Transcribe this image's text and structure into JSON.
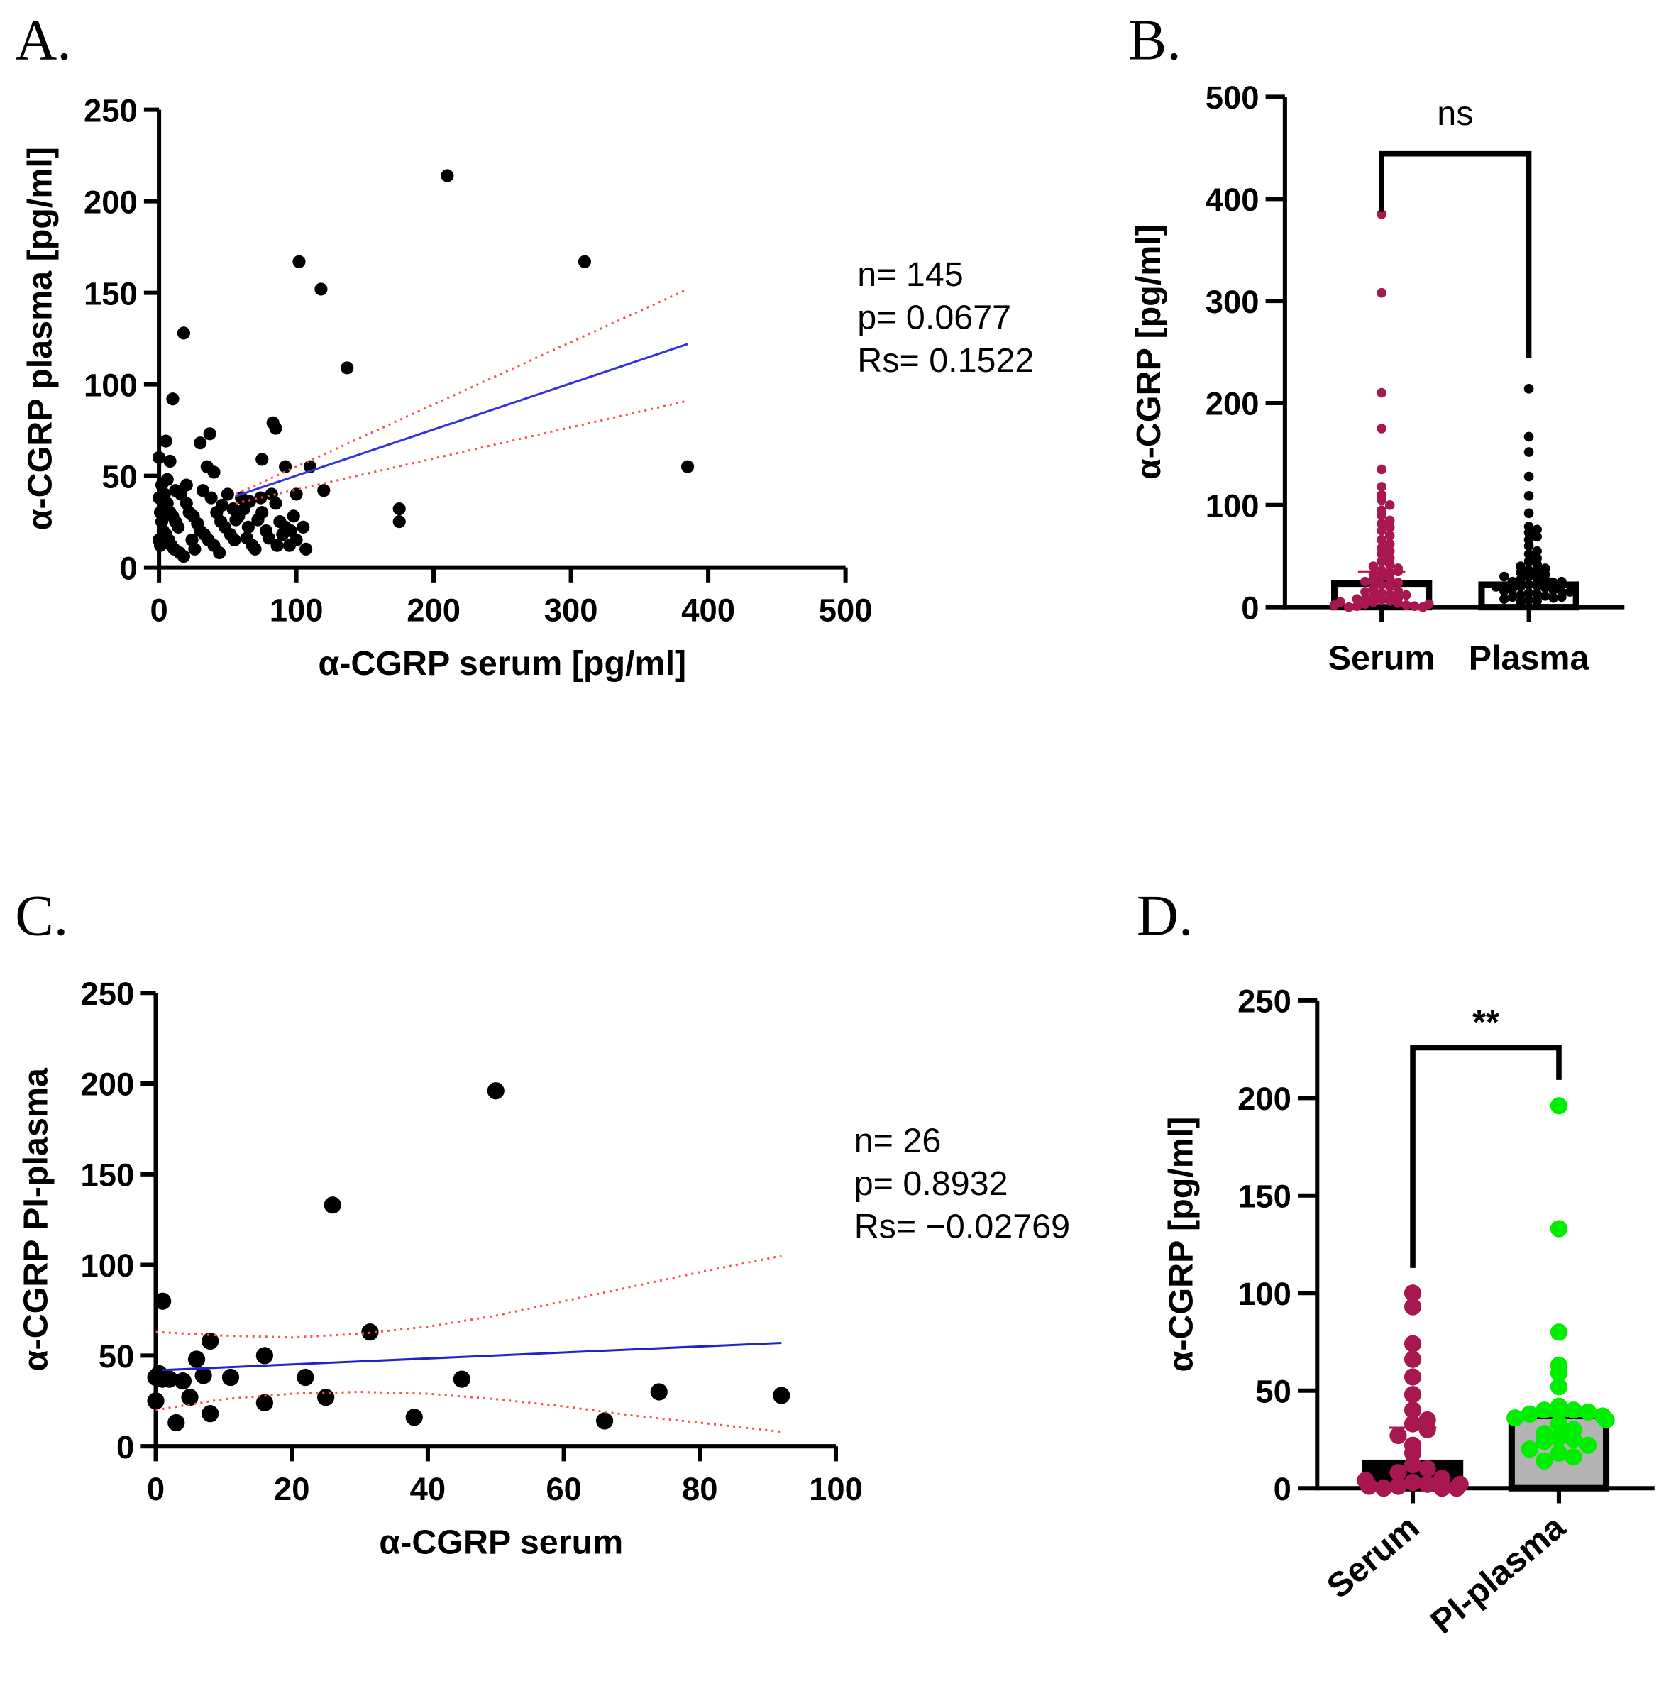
{
  "chart_data": [
    {
      "panel": "A.",
      "type": "scatter",
      "xlabel": "α-CGRP serum [pg/ml]",
      "ylabel": "α-CGRP plasma [pg/ml]",
      "xlim": [
        0,
        500
      ],
      "ylim": [
        0,
        250
      ],
      "xticks": [
        0,
        100,
        200,
        300,
        400,
        500
      ],
      "yticks": [
        0,
        50,
        100,
        150,
        200,
        250
      ],
      "stats": [
        "n= 145",
        "p= 0.0677",
        "Rs= 0.1522"
      ],
      "points": [
        [
          210,
          214
        ],
        [
          310,
          167
        ],
        [
          102,
          167
        ],
        [
          118,
          152
        ],
        [
          18,
          128
        ],
        [
          137,
          109
        ],
        [
          10,
          92
        ],
        [
          385,
          55
        ],
        [
          175,
          32
        ],
        [
          175,
          25
        ],
        [
          83,
          79
        ],
        [
          85,
          76
        ],
        [
          37,
          73
        ],
        [
          5,
          69
        ],
        [
          30,
          68
        ],
        [
          75,
          59
        ],
        [
          8,
          58
        ],
        [
          110,
          55
        ],
        [
          92,
          55
        ],
        [
          120,
          42
        ],
        [
          100,
          40
        ],
        [
          35,
          55
        ],
        [
          40,
          52
        ],
        [
          0,
          60
        ],
        [
          20,
          45
        ],
        [
          50,
          40
        ],
        [
          60,
          38
        ],
        [
          105,
          22
        ],
        [
          100,
          15
        ],
        [
          107,
          10
        ],
        [
          2,
          45
        ],
        [
          4,
          40
        ],
        [
          6,
          35
        ],
        [
          8,
          30
        ],
        [
          10,
          28
        ],
        [
          12,
          25
        ],
        [
          14,
          22
        ],
        [
          3,
          20
        ],
        [
          5,
          18
        ],
        [
          7,
          15
        ],
        [
          9,
          12
        ],
        [
          11,
          10
        ],
        [
          15,
          8
        ],
        [
          18,
          6
        ],
        [
          20,
          35
        ],
        [
          22,
          30
        ],
        [
          25,
          28
        ],
        [
          28,
          24
        ],
        [
          30,
          20
        ],
        [
          33,
          18
        ],
        [
          36,
          15
        ],
        [
          40,
          12
        ],
        [
          42,
          30
        ],
        [
          45,
          25
        ],
        [
          48,
          22
        ],
        [
          52,
          18
        ],
        [
          55,
          15
        ],
        [
          58,
          28
        ],
        [
          62,
          32
        ],
        [
          65,
          22
        ],
        [
          68,
          12
        ],
        [
          70,
          10
        ],
        [
          72,
          26
        ],
        [
          75,
          30
        ],
        [
          78,
          20
        ],
        [
          80,
          16
        ],
        [
          85,
          35
        ],
        [
          88,
          25
        ],
        [
          90,
          18
        ],
        [
          95,
          12
        ],
        [
          98,
          28
        ],
        [
          1,
          12
        ],
        [
          1,
          30
        ],
        [
          2,
          25
        ],
        [
          3,
          35
        ],
        [
          16,
          40
        ],
        [
          24,
          15
        ],
        [
          38,
          38
        ],
        [
          46,
          34
        ],
        [
          56,
          26
        ],
        [
          66,
          36
        ],
        [
          82,
          40
        ],
        [
          92,
          22
        ],
        [
          0,
          15
        ],
        [
          0,
          38
        ],
        [
          6,
          48
        ],
        [
          12,
          42
        ],
        [
          26,
          10
        ],
        [
          32,
          42
        ],
        [
          44,
          8
        ],
        [
          54,
          32
        ],
        [
          64,
          16
        ],
        [
          74,
          38
        ],
        [
          86,
          12
        ],
        [
          96,
          20
        ]
      ],
      "regression": [
        [
          56,
          39
        ],
        [
          385,
          122
        ]
      ],
      "ci_upper": [
        [
          56,
          40
        ],
        [
          385,
          152
        ]
      ],
      "ci_lower": [
        [
          56,
          35
        ],
        [
          385,
          91
        ]
      ],
      "colors": {
        "points": "#000000",
        "fit": "#3333dd",
        "ci": "#ff4d4d"
      }
    },
    {
      "panel": "B.",
      "type": "bar",
      "ylabel": "α-CGRP [pg/ml]",
      "ylim": [
        0,
        500
      ],
      "yticks": [
        0,
        100,
        200,
        300,
        400,
        500
      ],
      "categories": [
        "Serum",
        "Plasma"
      ],
      "values": [
        23,
        22
      ],
      "means_line": [
        35,
        28
      ],
      "significance": "ns",
      "points": {
        "Serum": [
          385,
          308,
          210,
          175,
          135,
          118,
          110,
          105,
          100,
          95,
          90,
          85,
          82,
          78,
          75,
          70,
          66,
          62,
          58,
          55,
          52,
          48,
          45,
          42,
          40,
          38,
          36,
          34,
          32,
          30,
          28,
          26,
          24,
          22,
          20,
          18,
          16,
          14,
          12,
          10,
          9,
          8,
          7,
          6,
          5,
          4,
          3,
          2,
          1,
          1,
          0,
          0,
          15,
          25,
          35,
          12,
          8,
          5,
          3,
          2
        ],
        "Plasma": [
          214,
          167,
          152,
          128,
          109,
          92,
          79,
          76,
          73,
          69,
          66,
          60,
          55,
          52,
          48,
          45,
          42,
          40,
          38,
          36,
          35,
          34,
          32,
          30,
          28,
          27,
          26,
          25,
          24,
          22,
          21,
          20,
          19,
          18,
          17,
          16,
          15,
          14,
          13,
          12,
          11,
          10,
          9,
          8,
          7,
          6,
          5,
          30,
          25,
          20,
          15,
          10
        ]
      },
      "colors": {
        "Serum": "#a8174f",
        "Plasma": "#000000",
        "bar_fill": "#ffffff"
      }
    },
    {
      "panel": "C.",
      "type": "scatter",
      "xlabel": "α-CGRP serum",
      "ylabel": "α-CGRP PI-plasma",
      "xlim": [
        0,
        100
      ],
      "ylim": [
        0,
        250
      ],
      "xticks": [
        0,
        20,
        40,
        60,
        80,
        100
      ],
      "yticks": [
        0,
        50,
        100,
        150,
        200,
        250
      ],
      "stats": [
        "n= 26",
        "p= 0.8932",
        "Rs= −0.02769"
      ],
      "points": [
        [
          1,
          80
        ],
        [
          0.5,
          40
        ],
        [
          0,
          38
        ],
        [
          0,
          25
        ],
        [
          2,
          37
        ],
        [
          3,
          13
        ],
        [
          4,
          36
        ],
        [
          5,
          27
        ],
        [
          6,
          48
        ],
        [
          7,
          39
        ],
        [
          8,
          58
        ],
        [
          8,
          18
        ],
        [
          11,
          38
        ],
        [
          16,
          50
        ],
        [
          16,
          24
        ],
        [
          22,
          38
        ],
        [
          25,
          27
        ],
        [
          26,
          133
        ],
        [
          31.5,
          63
        ],
        [
          38,
          16
        ],
        [
          45,
          37
        ],
        [
          50,
          196
        ],
        [
          66,
          14
        ],
        [
          74,
          30
        ],
        [
          92,
          28
        ],
        [
          1,
          37
        ]
      ],
      "regression": [
        [
          1,
          42
        ],
        [
          92,
          57
        ]
      ],
      "ci_upper": [
        [
          0,
          63
        ],
        [
          10,
          61
        ],
        [
          20,
          60
        ],
        [
          30,
          62
        ],
        [
          40,
          66
        ],
        [
          50,
          72
        ],
        [
          60,
          80
        ],
        [
          70,
          88
        ],
        [
          80,
          96
        ],
        [
          92,
          105
        ]
      ],
      "ci_lower": [
        [
          0,
          20
        ],
        [
          10,
          26
        ],
        [
          20,
          29
        ],
        [
          30,
          30
        ],
        [
          40,
          29
        ],
        [
          50,
          26
        ],
        [
          60,
          22
        ],
        [
          70,
          17
        ],
        [
          80,
          13
        ],
        [
          92,
          8
        ]
      ],
      "colors": {
        "points": "#000000",
        "fit": "#2222cc",
        "ci": "#ff4d4d"
      }
    },
    {
      "panel": "D.",
      "type": "bar",
      "ylabel": "α-CGRP [pg/ml]",
      "ylim": [
        0,
        250
      ],
      "yticks": [
        0,
        50,
        100,
        150,
        200,
        250
      ],
      "categories": [
        "Serum",
        "PI-plasma"
      ],
      "values": [
        13,
        37
      ],
      "means_line": [
        31,
        37
      ],
      "significance": "**",
      "points": {
        "Serum": [
          100,
          93,
          74,
          66,
          57,
          48,
          40,
          35,
          33,
          30,
          27,
          22,
          18,
          12,
          10,
          8,
          5,
          3,
          2,
          1,
          0,
          0,
          0,
          1,
          2,
          4
        ],
        "PI-plasma": [
          196,
          133,
          80,
          63,
          59,
          52,
          42,
          40,
          40,
          40,
          39,
          38,
          37,
          36,
          35,
          33,
          30,
          28,
          26,
          25,
          24,
          22,
          20,
          18,
          16,
          14
        ]
      },
      "colors": {
        "Serum": "#a8174f",
        "PI-plasma": "#00ee00",
        "bar_fill_serum": "#000000",
        "bar_fill_plasma": "#b3b3b3"
      }
    }
  ]
}
